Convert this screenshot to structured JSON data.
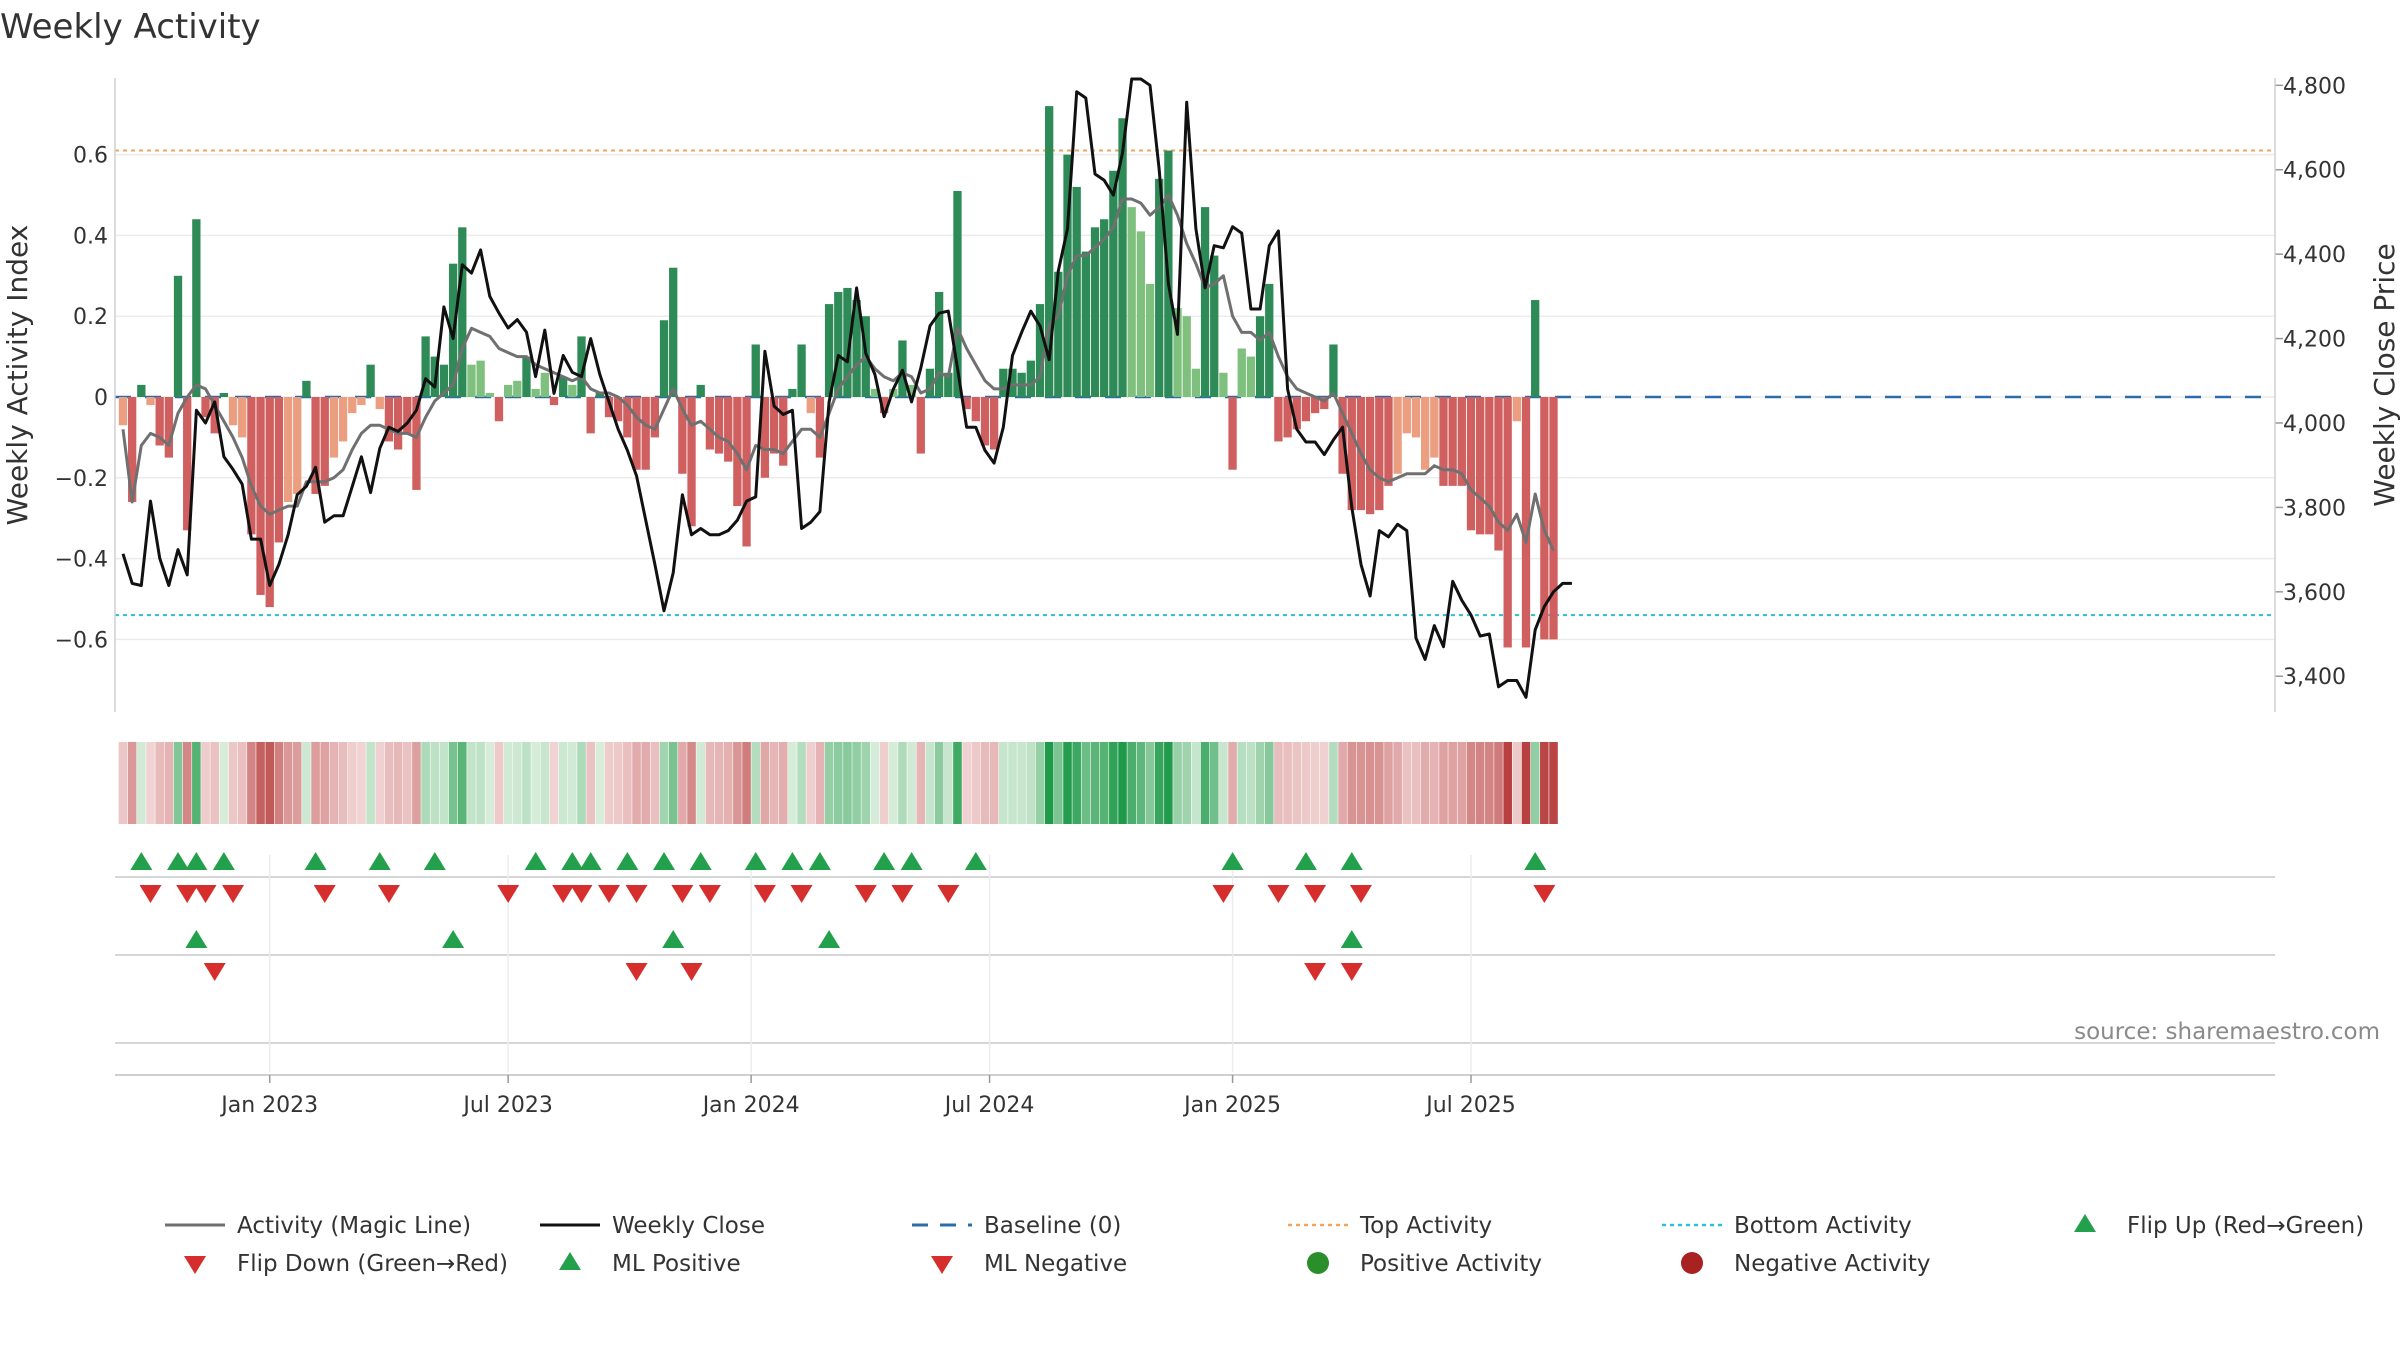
{
  "chart_data": {
    "type": "bar+line",
    "title": "Weekly Activity",
    "ylabel_left": "Weekly Activity Index",
    "ylabel_right": "Weekly Close Price",
    "ylim_left": [
      -0.78,
      0.78
    ],
    "ylim_right": [
      3320,
      4860
    ],
    "left_ticks": [
      "0.6",
      "0.4",
      "0.2",
      "0",
      "−0.2",
      "−0.4",
      "−0.6"
    ],
    "left_tick_values": [
      0.6,
      0.4,
      0.2,
      0,
      -0.2,
      -0.4,
      -0.6
    ],
    "right_ticks": [
      "4,800",
      "4,600",
      "4,400",
      "4,200",
      "4,000",
      "3,800",
      "3,600",
      "3,400"
    ],
    "right_tick_values": [
      4800,
      4600,
      4400,
      4200,
      4000,
      3800,
      3600,
      3400
    ],
    "x_ticks": [
      "Jan 2023",
      "Jul 2023",
      "Jan 2024",
      "Jul 2024",
      "Jan 2025",
      "Jul 2025"
    ],
    "x_tick_weeks": [
      16,
      42,
      68.5,
      94.5,
      121,
      147
    ],
    "top_activity": 0.61,
    "bottom_activity": -0.54,
    "activity": [
      -0.07,
      -0.26,
      0.03,
      -0.02,
      -0.12,
      -0.15,
      0.3,
      -0.33,
      0.44,
      -0.05,
      -0.09,
      0.01,
      -0.07,
      -0.1,
      -0.34,
      -0.49,
      -0.52,
      -0.36,
      -0.26,
      -0.24,
      0.04,
      -0.24,
      -0.22,
      -0.15,
      -0.11,
      -0.04,
      -0.02,
      0.08,
      -0.03,
      -0.11,
      -0.13,
      -0.09,
      -0.23,
      0.15,
      0.1,
      0.08,
      0.33,
      0.42,
      0.08,
      0.09,
      0.01,
      -0.06,
      0.03,
      0.04,
      0.1,
      0.02,
      0.06,
      -0.02,
      0.05,
      0.03,
      0.15,
      -0.09,
      0.01,
      -0.05,
      -0.06,
      -0.1,
      -0.18,
      -0.18,
      -0.1,
      0.19,
      0.32,
      -0.19,
      -0.32,
      0.03,
      -0.13,
      -0.14,
      -0.16,
      -0.27,
      -0.37,
      0.13,
      -0.2,
      -0.14,
      -0.17,
      0.02,
      0.13,
      -0.04,
      -0.15,
      0.23,
      0.26,
      0.27,
      0.24,
      0.2,
      0.02,
      -0.04,
      0.02,
      0.14,
      0.03,
      -0.14,
      0.07,
      0.26,
      0.06,
      0.51,
      -0.03,
      -0.06,
      -0.12,
      -0.13,
      0.07,
      0.07,
      0.06,
      0.09,
      0.23,
      0.72,
      0.31,
      0.6,
      0.52,
      0.36,
      0.42,
      0.44,
      0.56,
      0.69,
      0.47,
      0.41,
      0.28,
      0.54,
      0.61,
      0.22,
      0.2,
      0.07,
      0.47,
      0.35,
      0.06,
      -0.18,
      0.12,
      0.1,
      0.2,
      0.28,
      -0.11,
      -0.1,
      -0.08,
      -0.06,
      -0.04,
      -0.03,
      0.13,
      -0.19,
      -0.28,
      -0.28,
      -0.29,
      -0.28,
      -0.22,
      -0.19,
      -0.09,
      -0.1,
      -0.18,
      -0.15,
      -0.22,
      -0.22,
      -0.22,
      -0.33,
      -0.34,
      -0.34,
      -0.38,
      -0.62,
      -0.06,
      -0.62,
      0.24,
      -0.6,
      -0.6
    ],
    "magic_line": [
      -0.08,
      -0.26,
      -0.12,
      -0.09,
      -0.1,
      -0.12,
      -0.04,
      0.0,
      0.03,
      0.02,
      -0.02,
      -0.06,
      -0.1,
      -0.15,
      -0.22,
      -0.27,
      -0.29,
      -0.28,
      -0.27,
      -0.27,
      -0.21,
      -0.21,
      -0.21,
      -0.2,
      -0.18,
      -0.13,
      -0.09,
      -0.07,
      -0.07,
      -0.08,
      -0.09,
      -0.09,
      -0.1,
      -0.05,
      -0.01,
      0.01,
      0.03,
      0.12,
      0.17,
      0.16,
      0.15,
      0.12,
      0.11,
      0.1,
      0.1,
      0.08,
      0.07,
      0.06,
      0.05,
      0.04,
      0.05,
      0.02,
      0.01,
      0.01,
      0.0,
      -0.02,
      -0.05,
      -0.07,
      -0.08,
      -0.03,
      0.02,
      -0.03,
      -0.07,
      -0.06,
      -0.08,
      -0.1,
      -0.11,
      -0.14,
      -0.18,
      -0.12,
      -0.13,
      -0.13,
      -0.14,
      -0.11,
      -0.08,
      -0.08,
      -0.1,
      -0.04,
      0.02,
      0.05,
      0.08,
      0.1,
      0.07,
      0.05,
      0.04,
      0.06,
      0.05,
      0.01,
      0.02,
      0.06,
      0.05,
      0.17,
      0.12,
      0.08,
      0.04,
      0.02,
      0.02,
      0.03,
      0.03,
      0.03,
      0.05,
      0.18,
      0.2,
      0.3,
      0.35,
      0.35,
      0.37,
      0.39,
      0.42,
      0.49,
      0.49,
      0.48,
      0.45,
      0.47,
      0.5,
      0.45,
      0.38,
      0.33,
      0.27,
      0.28,
      0.3,
      0.2,
      0.16,
      0.16,
      0.14,
      0.16,
      0.1,
      0.05,
      0.02,
      0.01,
      0.0,
      -0.01,
      0.01,
      -0.04,
      -0.09,
      -0.14,
      -0.18,
      -0.2,
      -0.21,
      -0.2,
      -0.19,
      -0.19,
      -0.19,
      -0.17,
      -0.18,
      -0.18,
      -0.19,
      -0.23,
      -0.25,
      -0.27,
      -0.31,
      -0.33,
      -0.29,
      -0.36,
      -0.24,
      -0.33,
      -0.38
    ],
    "weekly_close": [
      3690,
      3620,
      3615,
      3815,
      3680,
      3615,
      3700,
      3640,
      4030,
      4000,
      4050,
      3920,
      3890,
      3855,
      3725,
      3725,
      3615,
      3665,
      3735,
      3830,
      3850,
      3895,
      3765,
      3780,
      3780,
      3850,
      3920,
      3835,
      3940,
      3990,
      3980,
      4000,
      4030,
      4105,
      4085,
      4275,
      4200,
      4375,
      4355,
      4410,
      4300,
      4260,
      4225,
      4245,
      4215,
      4110,
      4220,
      4070,
      4160,
      4120,
      4110,
      4200,
      4115,
      4050,
      3985,
      3935,
      3875,
      3770,
      3665,
      3555,
      3645,
      3830,
      3735,
      3750,
      3735,
      3735,
      3745,
      3770,
      3815,
      3825,
      4170,
      4040,
      4020,
      4030,
      3750,
      3765,
      3790,
      4050,
      4160,
      4145,
      4320,
      4165,
      4115,
      4015,
      4080,
      4125,
      4050,
      4130,
      4230,
      4260,
      4265,
      4130,
      3990,
      3990,
      3935,
      3905,
      3990,
      4160,
      4215,
      4265,
      4230,
      4150,
      4360,
      4460,
      4785,
      4770,
      4590,
      4575,
      4540,
      4640,
      4815,
      4815,
      4800,
      4600,
      4330,
      4210,
      4760,
      4460,
      4320,
      4420,
      4415,
      4465,
      4450,
      4270,
      4270,
      4420,
      4455,
      4080,
      3985,
      3955,
      3955,
      3925,
      3960,
      3990,
      3800,
      3665,
      3590,
      3745,
      3730,
      3760,
      3745,
      3490,
      3440,
      3520,
      3470,
      3625,
      3580,
      3545,
      3495,
      3500,
      3375,
      3390,
      3390,
      3350,
      3510,
      3565,
      3600,
      3620,
      3620
    ],
    "trend_strip": [
      -0.07,
      -0.26,
      0.03,
      -0.02,
      -0.12,
      -0.15,
      0.3,
      -0.33,
      0.44,
      -0.05,
      -0.09,
      0.01,
      -0.07,
      -0.1,
      -0.34,
      -0.49,
      -0.52,
      -0.36,
      -0.26,
      -0.24,
      0.04,
      -0.24,
      -0.22,
      -0.15,
      -0.11,
      -0.04,
      -0.02,
      0.08,
      -0.03,
      -0.11,
      -0.13,
      -0.09,
      -0.23,
      0.15,
      0.1,
      0.08,
      0.33,
      0.42,
      0.08,
      0.09,
      0.01,
      -0.06,
      0.03,
      0.04,
      0.1,
      0.02,
      0.06,
      -0.02,
      0.05,
      0.03,
      0.15,
      -0.09,
      0.01,
      -0.05,
      -0.06,
      -0.1,
      -0.18,
      -0.18,
      -0.1,
      0.19,
      0.32,
      -0.19,
      -0.32,
      0.03,
      -0.13,
      -0.14,
      -0.16,
      -0.27,
      -0.37,
      0.13,
      -0.2,
      -0.14,
      -0.17,
      0.02,
      0.13,
      -0.04,
      -0.15,
      0.23,
      0.26,
      0.27,
      0.24,
      0.2,
      0.02,
      -0.04,
      0.02,
      0.14,
      0.03,
      -0.14,
      0.07,
      0.26,
      0.06,
      0.51,
      -0.03,
      -0.06,
      -0.12,
      -0.13,
      0.07,
      0.07,
      0.06,
      0.09,
      0.23,
      0.72,
      0.31,
      0.6,
      0.52,
      0.36,
      0.42,
      0.44,
      0.56,
      0.69,
      0.47,
      0.41,
      0.28,
      0.54,
      0.61,
      0.22,
      0.2,
      0.07,
      0.47,
      0.35,
      0.06,
      -0.18,
      0.12,
      0.1,
      0.2,
      0.28,
      -0.11,
      -0.1,
      -0.08,
      -0.06,
      -0.04,
      -0.03,
      0.13,
      -0.19,
      -0.28,
      -0.28,
      -0.29,
      -0.28,
      -0.22,
      -0.19,
      -0.09,
      -0.1,
      -0.18,
      -0.15,
      -0.22,
      -0.22,
      -0.22,
      -0.33,
      -0.34,
      -0.34,
      -0.38,
      -0.62,
      -0.06,
      -0.62,
      0.24,
      -0.6,
      -0.6
    ],
    "flip_up_weeks": [
      2,
      6,
      8,
      11,
      21,
      28,
      34,
      45,
      49,
      51,
      55,
      59,
      63,
      69,
      73,
      76,
      83,
      86,
      93,
      121,
      129,
      134,
      154
    ],
    "flip_down_weeks": [
      3,
      7,
      9,
      12,
      22,
      29,
      42,
      48,
      50,
      53,
      56,
      61,
      64,
      70,
      74,
      81,
      85,
      90,
      120,
      126,
      130,
      135,
      155
    ],
    "ml_positive_weeks": [
      8,
      36,
      60,
      77,
      134
    ],
    "ml_negative_weeks": [
      10,
      56,
      62,
      130,
      134
    ],
    "source": "source: sharemaestro.com",
    "legend": [
      {
        "label": "Activity (Magic Line)",
        "kind": "line",
        "color": "#707070"
      },
      {
        "label": "Weekly Close",
        "kind": "line",
        "color": "#111111"
      },
      {
        "label": "Baseline (0)",
        "kind": "dash",
        "color": "#2c6da8"
      },
      {
        "label": "Top Activity",
        "kind": "dot",
        "color": "#f0a55e"
      },
      {
        "label": "Bottom Activity",
        "kind": "dot",
        "color": "#29c1d6"
      },
      {
        "label": "Flip Up (Red→Green)",
        "kind": "tri-up",
        "color": "#22a04b"
      },
      {
        "label": "Flip Down (Green→Red)",
        "kind": "tri-down",
        "color": "#d62d2d"
      },
      {
        "label": "ML Positive",
        "kind": "tri-up",
        "color": "#22a04b"
      },
      {
        "label": "ML Negative",
        "kind": "tri-down",
        "color": "#d62d2d"
      },
      {
        "label": "Positive Activity",
        "kind": "circle",
        "color": "#2a8f2a"
      },
      {
        "label": "Negative Activity",
        "kind": "circle",
        "color": "#a82222"
      }
    ],
    "colors": {
      "pos_strong": "#2e8b57",
      "pos_weak": "#7fc07f",
      "neg_strong": "#d06060",
      "neg_weak": "#eb9e80",
      "close": "#111111",
      "magic": "#707070"
    }
  }
}
